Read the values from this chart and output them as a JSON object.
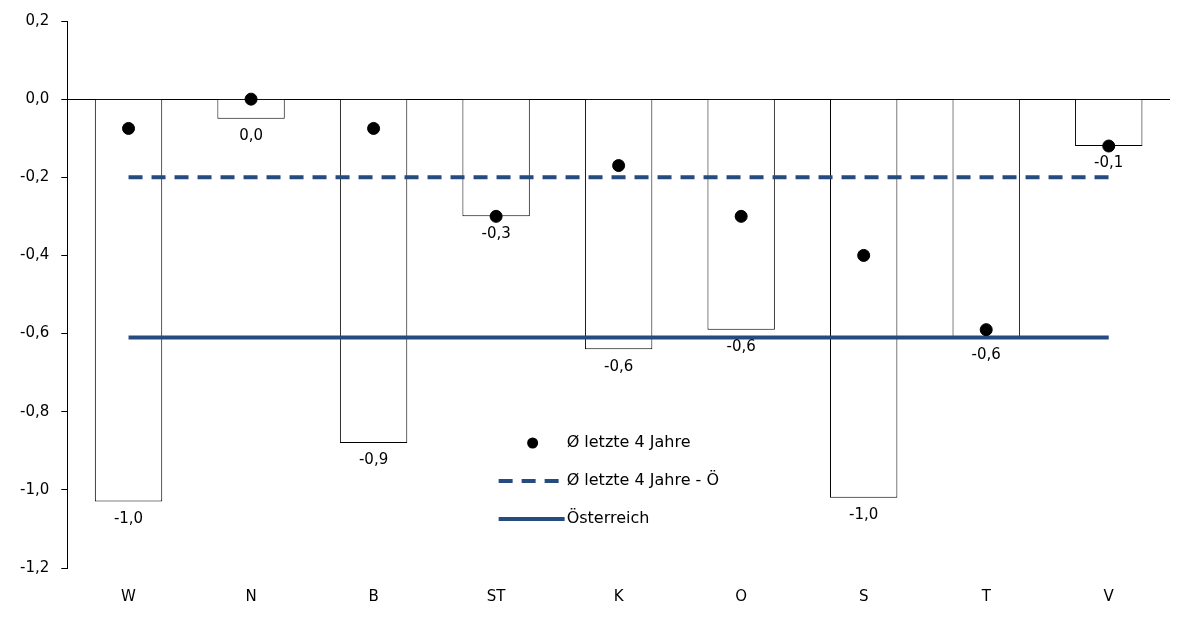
{
  "chart_data": {
    "type": "bar",
    "categories": [
      "W",
      "N",
      "B",
      "ST",
      "K",
      "O",
      "S",
      "T",
      "V"
    ],
    "series": [
      {
        "color": "#ffffff",
        "values": [
          -1.03,
          -0.05,
          -0.88,
          -0.3,
          -0.64,
          -0.59,
          -1.02,
          -0.61,
          -0.12
        ],
        "value_labels": [
          "-1,0",
          "0,0",
          "-0,9",
          "-0,3",
          "-0,6",
          "-0,6",
          "-1,0",
          "-0,6",
          "-0,1"
        ]
      },
      {
        "type": "scatter",
        "name": "Ø letzte 4 Jahre",
        "color": "#000000",
        "marker": "circle",
        "values": [
          -0.075,
          0.0,
          -0.075,
          -0.3,
          -0.17,
          -0.3,
          -0.4,
          -0.59,
          -0.12
        ]
      },
      {
        "type": "line",
        "name": "Ø letzte 4 Jahre - Ö",
        "color": "#264b7f",
        "line_style": "dashed",
        "marker": "none",
        "values": [
          -0.2,
          -0.2,
          -0.2,
          -0.2,
          -0.2,
          -0.2,
          -0.2,
          -0.2,
          -0.2
        ]
      },
      {
        "type": "line",
        "name": "Österreich",
        "color": "#264b7f",
        "line_style": "solid",
        "marker": "none",
        "values": [
          -0.61,
          -0.61,
          -0.61,
          -0.61,
          -0.61,
          -0.61,
          -0.61,
          -0.61,
          -0.61
        ]
      }
    ],
    "ylim": [
      -1.2,
      0.2
    ],
    "yticks": [
      {
        "value": 0.2,
        "label": "0,2"
      },
      {
        "value": 0,
        "label": "0,0"
      },
      {
        "value": -0.2,
        "label": "-0,2"
      },
      {
        "value": -0.4,
        "label": "-0,4"
      },
      {
        "value": -0.6,
        "label": "-0,6"
      },
      {
        "value": -0.8,
        "label": "-0,8"
      },
      {
        "value": -1.0,
        "label": "-1,0"
      },
      {
        "value": -1.2,
        "label": "-1,2"
      }
    ],
    "grid": false,
    "legend": "bottom"
  }
}
